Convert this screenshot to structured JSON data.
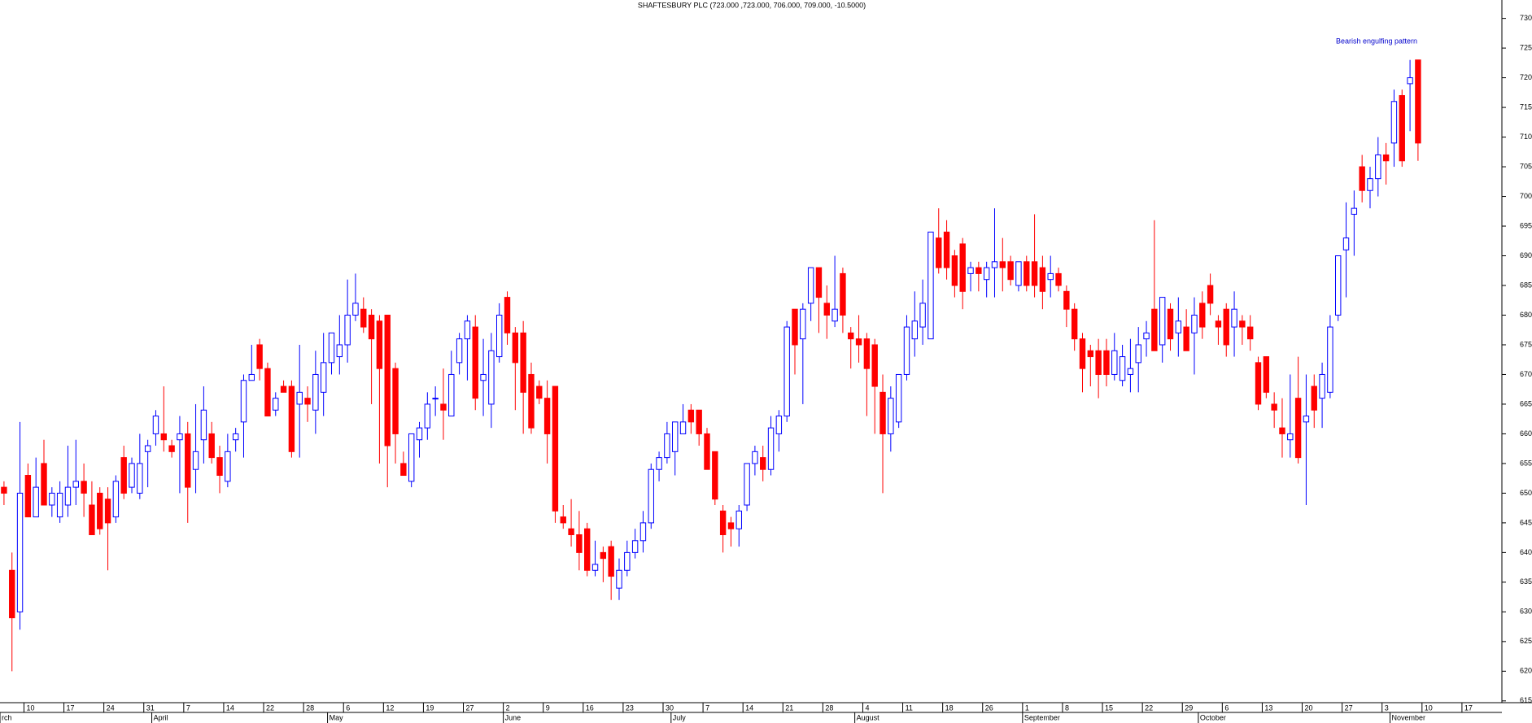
{
  "chart_data": {
    "type": "candlestick",
    "title": "SHAFTESBURY PLC (723.000 ,723.000, 706.000, 709.000, -10.5000)",
    "annotation": "Bearish engulfing pattern",
    "up_color": "#0000ff",
    "down_color": "#ff0000",
    "ylim": [
      614.7,
      733.1
    ],
    "yticks": [
      615,
      620,
      625,
      630,
      635,
      640,
      645,
      650,
      655,
      660,
      665,
      670,
      675,
      680,
      685,
      690,
      695,
      700,
      705,
      710,
      715,
      720,
      725,
      730
    ],
    "categories": [
      null,
      null,
      null,
      "10",
      null,
      null,
      null,
      null,
      "17",
      null,
      null,
      null,
      null,
      "24",
      null,
      null,
      null,
      null,
      "31",
      null,
      null,
      null,
      null,
      "7",
      null,
      null,
      null,
      null,
      "14",
      null,
      null,
      null,
      null,
      "22",
      null,
      null,
      null,
      null,
      "28",
      null,
      null,
      null,
      null,
      "6",
      null,
      null,
      null,
      null,
      "12",
      null,
      null,
      null,
      null,
      "19",
      null,
      null,
      null,
      null,
      "27",
      null,
      null,
      null,
      null,
      "2",
      null,
      null,
      null,
      null,
      "9",
      null,
      null,
      null,
      null,
      "16",
      null,
      null,
      null,
      null,
      "23",
      null,
      null,
      null,
      null,
      "30",
      null,
      null,
      null,
      null,
      "7",
      null,
      null,
      null,
      null,
      "14",
      null,
      null,
      null,
      null,
      "21",
      null,
      null,
      null,
      null,
      "28",
      null,
      null,
      null,
      null,
      "4",
      null,
      null,
      null,
      null,
      "11",
      null,
      null,
      null,
      null,
      "18",
      null,
      null,
      null,
      null,
      "26",
      null,
      null,
      null,
      null,
      "1",
      null,
      null,
      null,
      null,
      "8",
      null,
      null,
      null,
      null,
      "15",
      null,
      null,
      null,
      null,
      "22",
      null,
      null,
      null,
      null,
      "29",
      null,
      null,
      null,
      null,
      "6",
      null,
      null,
      null,
      null,
      "13",
      null,
      null,
      null,
      null,
      "20",
      null,
      null,
      null,
      null,
      "27",
      null,
      null,
      null,
      null,
      "3",
      null,
      null,
      null,
      null,
      "10",
      null,
      null,
      null,
      null,
      "17",
      null,
      null,
      null,
      null
    ],
    "months": [
      "rch",
      null,
      null,
      null,
      null,
      null,
      null,
      null,
      null,
      null,
      null,
      null,
      null,
      null,
      null,
      null,
      null,
      null,
      null,
      "April",
      null,
      null,
      null,
      null,
      null,
      null,
      null,
      null,
      null,
      null,
      null,
      null,
      null,
      null,
      null,
      null,
      null,
      null,
      null,
      null,
      null,
      "May",
      null,
      null,
      null,
      null,
      null,
      null,
      null,
      null,
      null,
      null,
      null,
      null,
      null,
      null,
      null,
      null,
      null,
      null,
      null,
      null,
      null,
      "June",
      null,
      null,
      null,
      null,
      null,
      null,
      null,
      null,
      null,
      null,
      null,
      null,
      null,
      null,
      null,
      null,
      null,
      null,
      null,
      null,
      "July",
      null,
      null,
      null,
      null,
      null,
      null,
      null,
      null,
      null,
      null,
      null,
      null,
      null,
      null,
      null,
      null,
      null,
      null,
      null,
      null,
      null,
      null,
      "August",
      null,
      null,
      null,
      null,
      null,
      null,
      null,
      null,
      null,
      null,
      null,
      null,
      null,
      null,
      null,
      null,
      null,
      null,
      null,
      null,
      "September",
      null,
      null,
      null,
      null,
      null,
      null,
      null,
      null,
      null,
      null,
      null,
      null,
      null,
      null,
      null,
      null,
      null,
      null,
      null,
      null,
      null,
      "October",
      null,
      null,
      null,
      null,
      null,
      null,
      null,
      null,
      null,
      null,
      null,
      null,
      null,
      null,
      null,
      null,
      null,
      null,
      null,
      null,
      null,
      null,
      null,
      "November",
      null,
      null,
      null,
      null,
      null,
      null,
      null,
      null,
      null,
      null,
      null,
      null,
      null
    ],
    "ohlc": [
      [
        651,
        652,
        648,
        650
      ],
      [
        637,
        640,
        620,
        629
      ],
      [
        630,
        662,
        627,
        650
      ],
      [
        653,
        655,
        646,
        646
      ],
      [
        646,
        656,
        646,
        651
      ],
      [
        655,
        659,
        648,
        648
      ],
      [
        648,
        651,
        646,
        650
      ],
      [
        646,
        652,
        645,
        650
      ],
      [
        648,
        658,
        646,
        651
      ],
      [
        651,
        659,
        648,
        652
      ],
      [
        652,
        655,
        646,
        650
      ],
      [
        648,
        652,
        643,
        643
      ],
      [
        650,
        651,
        643,
        644
      ],
      [
        649,
        651,
        637,
        645
      ],
      [
        646,
        653,
        645,
        652
      ],
      [
        656,
        658,
        649,
        650
      ],
      [
        651,
        656,
        650,
        655
      ],
      [
        650,
        660,
        649,
        655
      ],
      [
        657,
        659,
        651,
        658
      ],
      [
        660,
        664,
        658,
        663
      ],
      [
        660,
        668,
        657,
        659
      ],
      [
        658,
        659,
        656,
        657
      ],
      [
        659,
        663,
        650,
        660
      ],
      [
        660,
        662,
        645,
        651
      ],
      [
        654,
        665,
        650,
        657
      ],
      [
        659,
        668,
        655,
        664
      ],
      [
        660,
        662,
        655,
        656
      ],
      [
        656,
        658,
        650,
        653
      ],
      [
        652,
        660,
        651,
        657
      ],
      [
        659,
        661,
        657,
        660
      ],
      [
        662,
        670,
        656,
        669
      ],
      [
        669,
        675,
        669,
        670
      ],
      [
        675,
        676,
        669,
        671
      ],
      [
        671,
        672,
        663,
        663
      ],
      [
        664,
        667,
        663,
        666
      ],
      [
        668,
        669,
        667,
        667
      ],
      [
        668,
        669,
        656,
        657
      ],
      [
        665,
        675,
        656,
        667
      ],
      [
        666,
        668,
        662,
        665
      ],
      [
        664,
        674,
        660,
        670
      ],
      [
        667,
        677,
        663,
        672
      ],
      [
        672,
        677,
        670,
        677
      ],
      [
        673,
        680,
        670,
        675
      ],
      [
        675,
        686,
        672,
        680
      ],
      [
        680,
        687,
        679,
        682
      ],
      [
        681,
        683,
        677,
        678
      ],
      [
        680,
        681,
        665,
        676
      ],
      [
        679,
        680,
        655,
        671
      ],
      [
        680,
        680,
        651,
        658
      ],
      [
        671,
        672,
        655,
        660
      ],
      [
        655,
        657,
        653,
        653
      ],
      [
        652,
        658,
        651,
        660
      ],
      [
        659,
        662,
        656,
        661
      ],
      [
        661,
        667,
        659,
        665
      ],
      [
        666,
        668,
        663,
        666
      ],
      [
        665,
        671,
        659,
        664
      ],
      [
        663,
        674,
        663,
        670
      ],
      [
        672,
        677,
        670,
        676
      ],
      [
        676,
        680,
        669,
        679
      ],
      [
        678,
        680,
        664,
        666
      ],
      [
        669,
        676,
        663,
        670
      ],
      [
        665,
        677,
        661,
        674
      ],
      [
        673,
        682,
        672,
        680
      ],
      [
        683,
        684,
        675,
        677
      ],
      [
        677,
        678,
        664,
        672
      ],
      [
        677,
        679,
        660,
        667
      ],
      [
        670,
        672,
        660,
        661
      ],
      [
        668,
        669,
        665,
        666
      ],
      [
        666,
        669,
        655,
        660
      ],
      [
        668,
        668,
        645,
        647
      ],
      [
        646,
        648,
        644,
        645
      ],
      [
        644,
        649,
        641,
        643
      ],
      [
        643,
        647,
        637,
        640
      ],
      [
        644,
        645,
        636,
        637
      ],
      [
        637,
        642,
        636,
        638
      ],
      [
        640,
        641,
        635,
        639
      ],
      [
        641,
        642,
        632,
        636
      ],
      [
        634,
        639,
        632,
        637
      ],
      [
        637,
        642,
        636,
        640
      ],
      [
        640,
        644,
        639,
        642
      ],
      [
        642,
        647,
        640,
        645
      ],
      [
        645,
        655,
        644,
        654
      ],
      [
        654,
        657,
        652,
        656
      ],
      [
        656,
        662,
        655,
        660
      ],
      [
        657,
        662,
        653,
        662
      ],
      [
        660,
        665,
        660,
        662
      ],
      [
        664,
        665,
        660,
        662
      ],
      [
        664,
        664,
        658,
        660
      ],
      [
        660,
        661,
        654,
        654
      ],
      [
        657,
        657,
        648,
        649
      ],
      [
        647,
        648,
        640,
        643
      ],
      [
        645,
        646,
        641,
        644
      ],
      [
        644,
        648,
        641,
        647
      ],
      [
        648,
        655,
        647,
        655
      ],
      [
        655,
        658,
        653,
        657
      ],
      [
        656,
        658,
        652,
        654
      ],
      [
        654,
        663,
        653,
        661
      ],
      [
        660,
        664,
        657,
        663
      ],
      [
        663,
        679,
        662,
        678
      ],
      [
        681,
        681,
        670,
        675
      ],
      [
        676,
        682,
        665,
        681
      ],
      [
        682,
        688,
        679,
        688
      ],
      [
        688,
        688,
        677,
        683
      ],
      [
        682,
        685,
        676,
        680
      ],
      [
        679,
        690,
        678,
        681
      ],
      [
        687,
        688,
        677,
        680
      ],
      [
        677,
        678,
        671,
        676
      ],
      [
        676,
        680,
        672,
        675
      ],
      [
        676,
        677,
        663,
        671
      ],
      [
        675,
        676,
        660,
        668
      ],
      [
        667,
        670,
        650,
        660
      ],
      [
        660,
        668,
        657,
        666
      ],
      [
        662,
        670,
        661,
        670
      ],
      [
        670,
        680,
        669,
        678
      ],
      [
        676,
        684,
        673,
        679
      ],
      [
        678,
        686,
        675,
        682
      ],
      [
        676,
        694,
        676,
        694
      ],
      [
        693,
        698,
        687,
        688
      ],
      [
        694,
        696,
        686,
        688
      ],
      [
        690,
        691,
        683,
        685
      ],
      [
        692,
        693,
        681,
        684
      ],
      [
        687,
        689,
        684,
        688
      ],
      [
        688,
        689,
        684,
        687
      ],
      [
        686,
        689,
        683,
        688
      ],
      [
        688,
        698,
        683,
        689
      ],
      [
        689,
        693,
        684,
        688
      ],
      [
        689,
        690,
        685,
        686
      ],
      [
        685,
        689,
        684,
        689
      ],
      [
        689,
        690,
        684,
        685
      ],
      [
        689,
        697,
        683,
        685
      ],
      [
        688,
        690,
        681,
        684
      ],
      [
        686,
        690,
        683,
        687
      ],
      [
        687,
        688,
        684,
        685
      ],
      [
        684,
        685,
        678,
        681
      ],
      [
        681,
        682,
        674,
        676
      ],
      [
        676,
        677,
        667,
        671
      ],
      [
        674,
        675,
        668,
        673
      ],
      [
        674,
        676,
        666,
        670
      ],
      [
        674,
        676,
        668,
        670
      ],
      [
        670,
        677,
        669,
        674
      ],
      [
        669,
        675,
        668,
        673
      ],
      [
        670,
        676,
        667,
        671
      ],
      [
        672,
        678,
        667,
        675
      ],
      [
        676,
        679,
        673,
        677
      ],
      [
        681,
        696,
        674,
        674
      ],
      [
        675,
        683,
        672,
        683
      ],
      [
        681,
        682,
        674,
        676
      ],
      [
        677,
        683,
        673,
        679
      ],
      [
        678,
        681,
        674,
        674
      ],
      [
        677,
        683,
        670,
        680
      ],
      [
        682,
        684,
        676,
        678
      ],
      [
        685,
        687,
        680,
        682
      ],
      [
        679,
        680,
        675,
        678
      ],
      [
        681,
        682,
        673,
        675
      ],
      [
        678,
        684,
        673,
        681
      ],
      [
        679,
        680,
        675,
        678
      ],
      [
        678,
        680,
        674,
        676
      ],
      [
        672,
        673,
        664,
        665
      ],
      [
        673,
        673,
        666,
        667
      ],
      [
        665,
        667,
        661,
        664
      ],
      [
        661,
        666,
        656,
        660
      ],
      [
        659,
        670,
        656,
        660
      ],
      [
        666,
        673,
        655,
        656
      ],
      [
        662,
        670,
        648,
        663
      ],
      [
        668,
        670,
        661,
        664
      ],
      [
        666,
        672,
        661,
        670
      ],
      [
        667,
        680,
        666,
        678
      ],
      [
        680,
        690,
        679,
        690
      ],
      [
        691,
        699,
        683,
        693
      ],
      [
        697,
        701,
        690,
        698
      ],
      [
        705,
        707,
        699,
        701
      ],
      [
        701,
        705,
        698,
        703
      ],
      [
        703,
        710,
        700,
        707
      ],
      [
        707,
        709,
        702,
        706
      ],
      [
        709,
        718,
        705,
        716
      ],
      [
        717,
        718,
        705,
        706
      ],
      [
        719,
        723,
        711,
        720
      ],
      [
        723,
        723,
        706,
        709
      ],
      null,
      null,
      null,
      null,
      null,
      null,
      null,
      null,
      null,
      null
    ]
  }
}
